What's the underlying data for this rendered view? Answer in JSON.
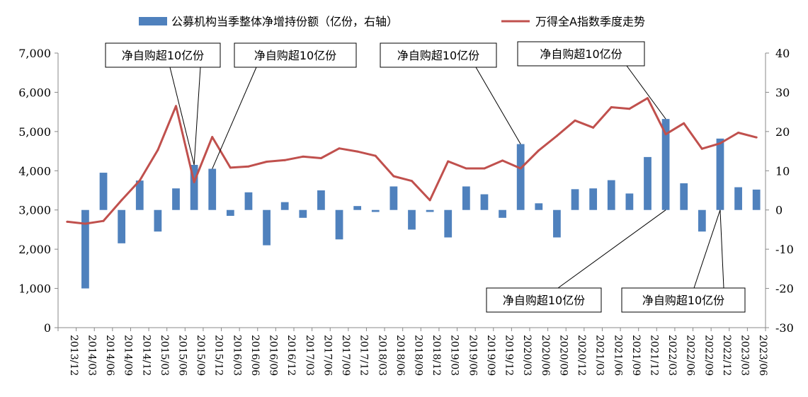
{
  "chart_data": {
    "type": "bar+line",
    "categories": [
      "2013/12",
      "2014/03",
      "2014/06",
      "2014/09",
      "2014/12",
      "2015/03",
      "2015/06",
      "2015/09",
      "2015/12",
      "2016/03",
      "2016/06",
      "2016/09",
      "2016/12",
      "2017/03",
      "2017/06",
      "2017/09",
      "2017/12",
      "2018/03",
      "2018/06",
      "2018/09",
      "2018/12",
      "2019/03",
      "2019/06",
      "2019/09",
      "2019/12",
      "2020/03",
      "2020/06",
      "2020/09",
      "2020/12",
      "2021/03",
      "2021/06",
      "2021/09",
      "2021/12",
      "2022/03",
      "2022/06",
      "2022/09",
      "2022/12",
      "2023/03",
      "2023/06"
    ],
    "series": [
      {
        "name": "公募机构当季整体净增持份额（亿份，右轴）",
        "type": "bar",
        "axis": "right",
        "color": "#4F81BD",
        "values": [
          null,
          -20,
          9.5,
          -8.5,
          7.5,
          -5.5,
          5.5,
          11.5,
          10.5,
          -1.5,
          4.5,
          -9,
          2,
          -2,
          5,
          -7.5,
          1,
          -0.5,
          6,
          -5,
          -0.5,
          -7,
          6,
          4,
          -2,
          16.8,
          1.7,
          -7,
          5.3,
          5.5,
          7.6,
          4.2,
          13.5,
          23.2,
          6.8,
          -5.5,
          18.2,
          5.8,
          5.2
        ]
      },
      {
        "name": "万得全A指数季度走势",
        "type": "line",
        "axis": "left",
        "color": "#C0504D",
        "values": [
          2700,
          2650,
          2720,
          3250,
          3750,
          4530,
          5650,
          3710,
          4860,
          4080,
          4110,
          4230,
          4270,
          4360,
          4320,
          4570,
          4490,
          4380,
          3860,
          3740,
          3250,
          4240,
          4060,
          4060,
          4260,
          4060,
          4520,
          4890,
          5280,
          5100,
          5620,
          5580,
          5850,
          4930,
          5210,
          4560,
          4700,
          4970,
          4850
        ]
      }
    ],
    "left_axis": {
      "min": 0,
      "max": 7000,
      "step": 1000,
      "tick_labels": [
        "0",
        "1,000",
        "2,000",
        "3,000",
        "4,000",
        "5,000",
        "6,000",
        "7,000"
      ]
    },
    "right_axis": {
      "min": -30,
      "max": 40,
      "step": 10,
      "tick_labels": [
        "-30",
        "-20",
        "-10",
        "0",
        "10",
        "20",
        "30",
        "40"
      ]
    },
    "legend": {
      "position": "top",
      "items": [
        "公募机构当季整体净增持份额（亿份，右轴）",
        "万得全A指数季度走势"
      ]
    },
    "grid": false,
    "annotations": [
      {
        "text": "净自购超10亿份",
        "target_category": "2015/09"
      },
      {
        "text": "净自购超10亿份",
        "target_category": "2015/12"
      },
      {
        "text": "净自购超10亿份",
        "target_category": "2020/03"
      },
      {
        "text": "净自购超10亿份",
        "target_category": "2022/03"
      },
      {
        "text": "净自购超10亿份",
        "target_category": "2022/03"
      },
      {
        "text": "净自购超10亿份",
        "target_category": "2022/12"
      }
    ]
  }
}
